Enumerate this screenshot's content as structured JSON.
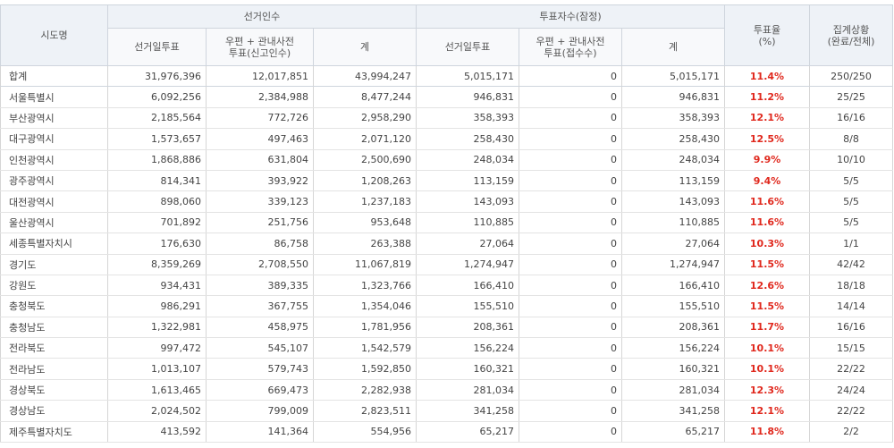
{
  "headers": {
    "region": "시도명",
    "electors_group": "선거인수",
    "voters_group": "투표자수(잠정)",
    "rate_line1": "투표율",
    "rate_line2": "(%)",
    "status_line1": "집계상황",
    "status_line2": "(완료/전체)",
    "electors_day": "선거일투표",
    "electors_mail_line1": "우편 + 관내사전",
    "electors_mail_line2": "투표(신고인수)",
    "electors_total": "계",
    "voters_day": "선거일투표",
    "voters_mail_line1": "우편 + 관내사전",
    "voters_mail_line2": "투표(접수수)",
    "voters_total": "계"
  },
  "rows": [
    {
      "region": "합계",
      "e_day": "31,976,396",
      "e_mail": "12,017,851",
      "e_total": "43,994,247",
      "v_day": "5,015,171",
      "v_mail": "0",
      "v_total": "5,015,171",
      "rate": "11.4%",
      "status": "250/250"
    },
    {
      "region": "서울특별시",
      "e_day": "6,092,256",
      "e_mail": "2,384,988",
      "e_total": "8,477,244",
      "v_day": "946,831",
      "v_mail": "0",
      "v_total": "946,831",
      "rate": "11.2%",
      "status": "25/25"
    },
    {
      "region": "부산광역시",
      "e_day": "2,185,564",
      "e_mail": "772,726",
      "e_total": "2,958,290",
      "v_day": "358,393",
      "v_mail": "0",
      "v_total": "358,393",
      "rate": "12.1%",
      "status": "16/16"
    },
    {
      "region": "대구광역시",
      "e_day": "1,573,657",
      "e_mail": "497,463",
      "e_total": "2,071,120",
      "v_day": "258,430",
      "v_mail": "0",
      "v_total": "258,430",
      "rate": "12.5%",
      "status": "8/8"
    },
    {
      "region": "인천광역시",
      "e_day": "1,868,886",
      "e_mail": "631,804",
      "e_total": "2,500,690",
      "v_day": "248,034",
      "v_mail": "0",
      "v_total": "248,034",
      "rate": "9.9%",
      "status": "10/10"
    },
    {
      "region": "광주광역시",
      "e_day": "814,341",
      "e_mail": "393,922",
      "e_total": "1,208,263",
      "v_day": "113,159",
      "v_mail": "0",
      "v_total": "113,159",
      "rate": "9.4%",
      "status": "5/5"
    },
    {
      "region": "대전광역시",
      "e_day": "898,060",
      "e_mail": "339,123",
      "e_total": "1,237,183",
      "v_day": "143,093",
      "v_mail": "0",
      "v_total": "143,093",
      "rate": "11.6%",
      "status": "5/5"
    },
    {
      "region": "울산광역시",
      "e_day": "701,892",
      "e_mail": "251,756",
      "e_total": "953,648",
      "v_day": "110,885",
      "v_mail": "0",
      "v_total": "110,885",
      "rate": "11.6%",
      "status": "5/5"
    },
    {
      "region": "세종특별자치시",
      "e_day": "176,630",
      "e_mail": "86,758",
      "e_total": "263,388",
      "v_day": "27,064",
      "v_mail": "0",
      "v_total": "27,064",
      "rate": "10.3%",
      "status": "1/1"
    },
    {
      "region": "경기도",
      "e_day": "8,359,269",
      "e_mail": "2,708,550",
      "e_total": "11,067,819",
      "v_day": "1,274,947",
      "v_mail": "0",
      "v_total": "1,274,947",
      "rate": "11.5%",
      "status": "42/42"
    },
    {
      "region": "강원도",
      "e_day": "934,431",
      "e_mail": "389,335",
      "e_total": "1,323,766",
      "v_day": "166,410",
      "v_mail": "0",
      "v_total": "166,410",
      "rate": "12.6%",
      "status": "18/18"
    },
    {
      "region": "충청북도",
      "e_day": "986,291",
      "e_mail": "367,755",
      "e_total": "1,354,046",
      "v_day": "155,510",
      "v_mail": "0",
      "v_total": "155,510",
      "rate": "11.5%",
      "status": "14/14"
    },
    {
      "region": "충청남도",
      "e_day": "1,322,981",
      "e_mail": "458,975",
      "e_total": "1,781,956",
      "v_day": "208,361",
      "v_mail": "0",
      "v_total": "208,361",
      "rate": "11.7%",
      "status": "16/16"
    },
    {
      "region": "전라북도",
      "e_day": "997,472",
      "e_mail": "545,107",
      "e_total": "1,542,579",
      "v_day": "156,224",
      "v_mail": "0",
      "v_total": "156,224",
      "rate": "10.1%",
      "status": "15/15"
    },
    {
      "region": "전라남도",
      "e_day": "1,013,107",
      "e_mail": "579,743",
      "e_total": "1,592,850",
      "v_day": "160,321",
      "v_mail": "0",
      "v_total": "160,321",
      "rate": "10.1%",
      "status": "22/22"
    },
    {
      "region": "경상북도",
      "e_day": "1,613,465",
      "e_mail": "669,473",
      "e_total": "2,282,938",
      "v_day": "281,034",
      "v_mail": "0",
      "v_total": "281,034",
      "rate": "12.3%",
      "status": "24/24"
    },
    {
      "region": "경상남도",
      "e_day": "2,024,502",
      "e_mail": "799,009",
      "e_total": "2,823,511",
      "v_day": "341,258",
      "v_mail": "0",
      "v_total": "341,258",
      "rate": "12.1%",
      "status": "22/22"
    },
    {
      "region": "제주특별자치도",
      "e_day": "413,592",
      "e_mail": "141,364",
      "e_total": "554,956",
      "v_day": "65,217",
      "v_mail": "0",
      "v_total": "65,217",
      "rate": "11.8%",
      "status": "2/2"
    }
  ]
}
